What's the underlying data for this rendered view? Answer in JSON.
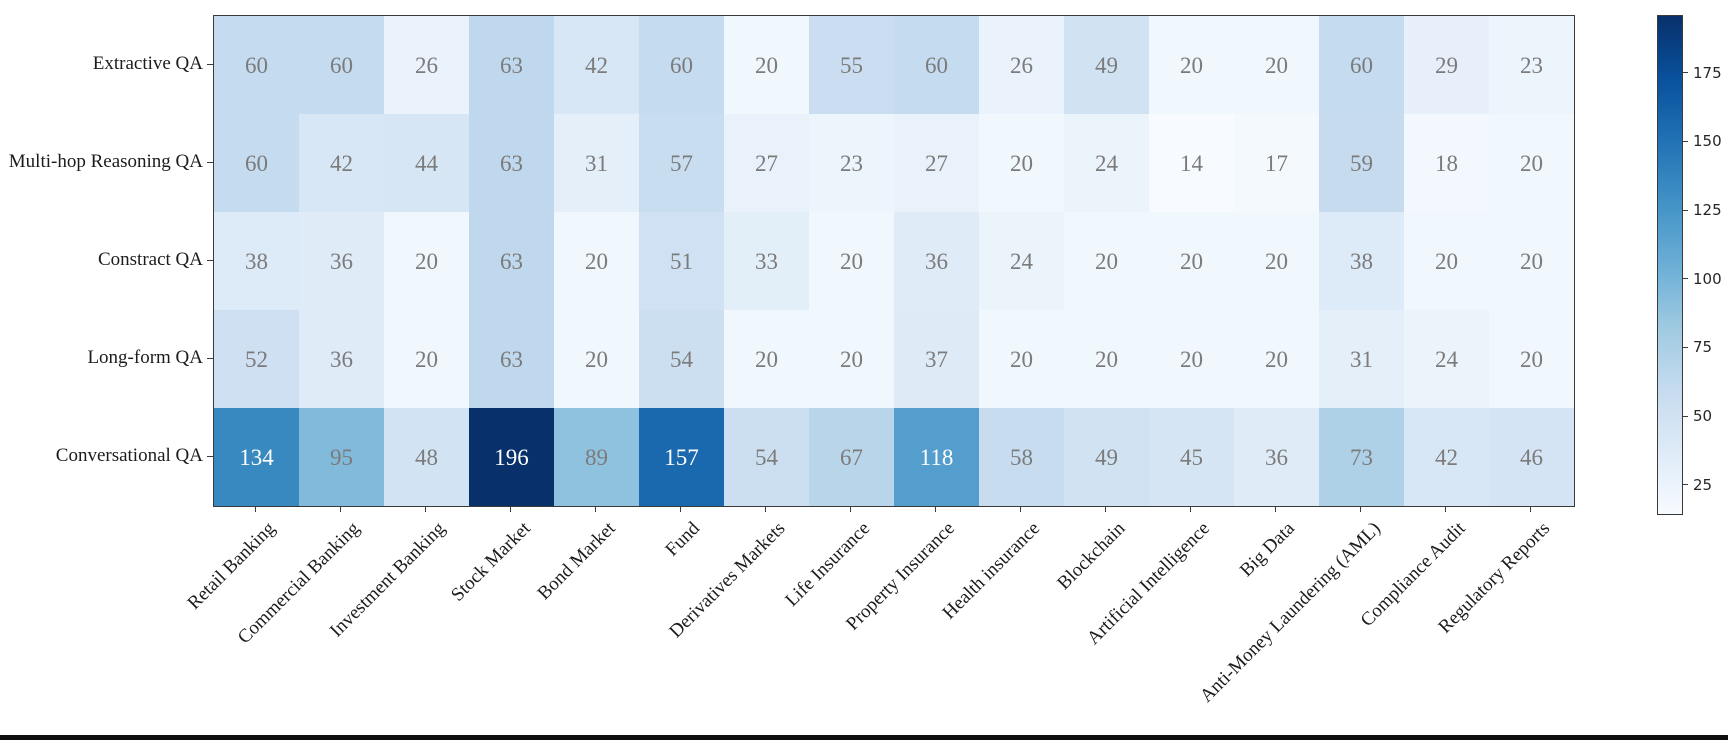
{
  "chart_data": {
    "type": "heatmap",
    "rows": [
      "Extractive QA",
      "Multi-hop Reasoning QA",
      "Constract QA",
      "Long-form QA",
      "Conversational QA"
    ],
    "columns": [
      "Retail Banking",
      "Commercial Banking",
      "Investment Banking",
      "Stock Market",
      "Bond Market",
      "Fund",
      "Derivatives Markets",
      "Life Insurance",
      "Property Insurance",
      "Health insurance",
      "Blockchain",
      "Artificial Intelligence",
      "Big Data",
      "Anti-Money Laundering (AML)",
      "Compliance Audit",
      "Regulatory Reports"
    ],
    "values": [
      [
        60,
        60,
        26,
        63,
        42,
        60,
        20,
        55,
        60,
        26,
        49,
        20,
        20,
        60,
        29,
        23
      ],
      [
        60,
        42,
        44,
        63,
        31,
        57,
        27,
        23,
        27,
        20,
        24,
        14,
        17,
        59,
        18,
        20
      ],
      [
        38,
        36,
        20,
        63,
        20,
        51,
        33,
        20,
        36,
        24,
        20,
        20,
        20,
        38,
        20,
        20
      ],
      [
        52,
        36,
        20,
        63,
        20,
        54,
        20,
        20,
        37,
        20,
        20,
        20,
        20,
        31,
        24,
        20
      ],
      [
        134,
        95,
        48,
        196,
        89,
        157,
        54,
        67,
        118,
        58,
        49,
        45,
        36,
        73,
        42,
        46
      ]
    ],
    "colormap": "Blues",
    "vmin": 14,
    "vmax": 196,
    "colorbar_ticks": [
      175,
      150,
      125,
      100,
      75,
      50,
      25
    ],
    "colorbar_position": "right",
    "grid": false,
    "title": "",
    "xlabel": "",
    "ylabel": ""
  },
  "colors": {
    "colormap_anchors": [
      "#f7fbff",
      "#deebf7",
      "#c6dbef",
      "#9ecae1",
      "#6baed6",
      "#4292c6",
      "#2171b5",
      "#08519c",
      "#08306b"
    ],
    "annotation_on_light": "#7b7b7b",
    "annotation_on_dark": "#ffffff",
    "axis": "#3a3a3a"
  }
}
